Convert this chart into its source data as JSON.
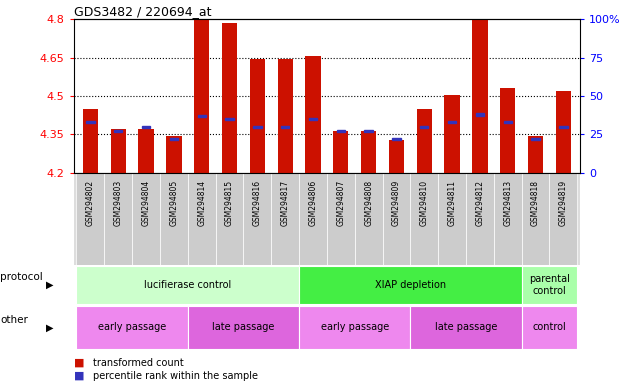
{
  "title": "GDS3482 / 220694_at",
  "samples": [
    "GSM294802",
    "GSM294803",
    "GSM294804",
    "GSM294805",
    "GSM294814",
    "GSM294815",
    "GSM294816",
    "GSM294817",
    "GSM294806",
    "GSM294807",
    "GSM294808",
    "GSM294809",
    "GSM294810",
    "GSM294811",
    "GSM294812",
    "GSM294813",
    "GSM294818",
    "GSM294819"
  ],
  "bar_tops": [
    4.45,
    4.37,
    4.37,
    4.345,
    4.795,
    4.785,
    4.645,
    4.645,
    4.655,
    4.365,
    4.365,
    4.33,
    4.45,
    4.505,
    4.795,
    4.53,
    4.345,
    4.52
  ],
  "bar_bottom": 4.2,
  "blue_pcts": [
    33,
    27,
    30,
    22,
    37,
    35,
    30,
    30,
    35,
    27,
    27,
    22,
    30,
    33,
    38,
    33,
    22,
    30
  ],
  "ylim_left": [
    4.2,
    4.8
  ],
  "ylim_right": [
    0,
    100
  ],
  "yticks_left": [
    4.2,
    4.35,
    4.5,
    4.65,
    4.8
  ],
  "yticks_right": [
    0,
    25,
    50,
    75,
    100
  ],
  "hlines": [
    4.35,
    4.5,
    4.65
  ],
  "bar_color": "#CC1100",
  "blue_color": "#3333BB",
  "protocol_groups": [
    {
      "text": "lucifierase control",
      "start": 0,
      "end": 7,
      "color": "#CCFFCC"
    },
    {
      "text": "XIAP depletion",
      "start": 8,
      "end": 15,
      "color": "#44EE44"
    },
    {
      "text": "parental\ncontrol",
      "start": 16,
      "end": 17,
      "color": "#AAFFAA"
    }
  ],
  "other_groups": [
    {
      "text": "early passage",
      "start": 0,
      "end": 3,
      "color": "#EE88EE"
    },
    {
      "text": "late passage",
      "start": 4,
      "end": 7,
      "color": "#DD66DD"
    },
    {
      "text": "early passage",
      "start": 8,
      "end": 11,
      "color": "#EE88EE"
    },
    {
      "text": "late passage",
      "start": 12,
      "end": 15,
      "color": "#DD66DD"
    },
    {
      "text": "control",
      "start": 16,
      "end": 17,
      "color": "#EE88EE"
    }
  ],
  "legend": [
    {
      "color": "#CC1100",
      "label": "transformed count"
    },
    {
      "color": "#3333BB",
      "label": "percentile rank within the sample"
    }
  ]
}
